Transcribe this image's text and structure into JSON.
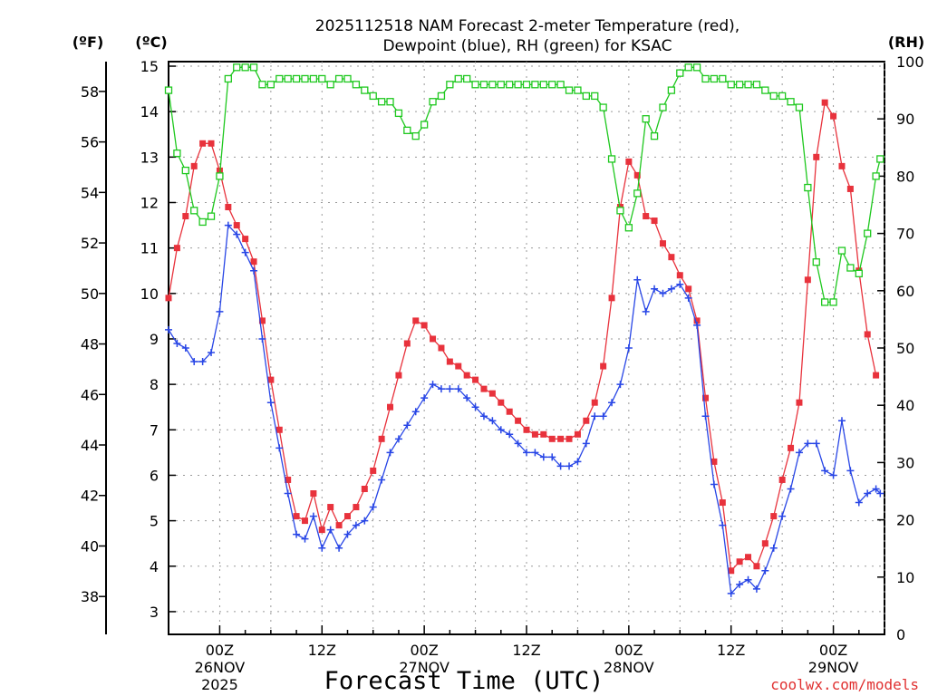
{
  "chart_data": {
    "type": "line",
    "title_line1": "2025112518 NAM Forecast 2-meter Temperature (red),",
    "title_line2": "Dewpoint (blue), RH (green) for KSAC",
    "xlabel": "Forecast Time (UTC)",
    "watermark": "coolwx.com/models",
    "unit_f": "(ºF)",
    "unit_c": "(ºC)",
    "unit_rh": "(RH)",
    "x_start_hour": -6,
    "x_end_hour": 78,
    "y_celsius_range": [
      2.5,
      15.1
    ],
    "y_rh_range": [
      0,
      100
    ],
    "celsius_ticks": [
      "3",
      "4",
      "5",
      "6",
      "7",
      "8",
      "9",
      "10",
      "11",
      "12",
      "13",
      "14",
      "15"
    ],
    "fahrenheit_ticks": [
      "38",
      "40",
      "42",
      "44",
      "46",
      "48",
      "50",
      "52",
      "54",
      "56",
      "58"
    ],
    "rh_ticks": [
      "0",
      "10",
      "20",
      "30",
      "40",
      "50",
      "60",
      "70",
      "80",
      "90",
      "100"
    ],
    "x_ticks": [
      {
        "hour": 0,
        "time": "00Z",
        "day": "26NOV",
        "year": "2025"
      },
      {
        "hour": 12,
        "time": "12Z",
        "day": "",
        "year": ""
      },
      {
        "hour": 24,
        "time": "00Z",
        "day": "27NOV",
        "year": ""
      },
      {
        "hour": 36,
        "time": "12Z",
        "day": "",
        "year": ""
      },
      {
        "hour": 48,
        "time": "00Z",
        "day": "28NOV",
        "year": ""
      },
      {
        "hour": 60,
        "time": "12Z",
        "day": "",
        "year": ""
      },
      {
        "hour": 72,
        "time": "00Z",
        "day": "29NOV",
        "year": ""
      }
    ],
    "series": [
      {
        "name": "Temperature",
        "units": "C",
        "color": "#e8323c",
        "marker": "filled-square",
        "values": [
          [
            -6,
            9.9
          ],
          [
            -5,
            11.0
          ],
          [
            -4,
            11.7
          ],
          [
            -3,
            12.8
          ],
          [
            -2,
            13.3
          ],
          [
            -1,
            13.3
          ],
          [
            0,
            12.7
          ],
          [
            1,
            11.9
          ],
          [
            2,
            11.5
          ],
          [
            3,
            11.2
          ],
          [
            4,
            10.7
          ],
          [
            5,
            9.4
          ],
          [
            6,
            8.1
          ],
          [
            7,
            7.0
          ],
          [
            8,
            5.9
          ],
          [
            9,
            5.1
          ],
          [
            10,
            5.0
          ],
          [
            11,
            5.6
          ],
          [
            12,
            4.8
          ],
          [
            13,
            5.3
          ],
          [
            14,
            4.9
          ],
          [
            15,
            5.1
          ],
          [
            16,
            5.3
          ],
          [
            17,
            5.7
          ],
          [
            18,
            6.1
          ],
          [
            19,
            6.8
          ],
          [
            20,
            7.5
          ],
          [
            21,
            8.2
          ],
          [
            22,
            8.9
          ],
          [
            23,
            9.4
          ],
          [
            24,
            9.3
          ],
          [
            25,
            9.0
          ],
          [
            26,
            8.8
          ],
          [
            27,
            8.5
          ],
          [
            28,
            8.4
          ],
          [
            29,
            8.2
          ],
          [
            30,
            8.1
          ],
          [
            31,
            7.9
          ],
          [
            32,
            7.8
          ],
          [
            33,
            7.6
          ],
          [
            34,
            7.4
          ],
          [
            35,
            7.2
          ],
          [
            36,
            7.0
          ],
          [
            37,
            6.9
          ],
          [
            38,
            6.9
          ],
          [
            39,
            6.8
          ],
          [
            40,
            6.8
          ],
          [
            41,
            6.8
          ],
          [
            42,
            6.9
          ],
          [
            43,
            7.2
          ],
          [
            44,
            7.6
          ],
          [
            45,
            8.4
          ],
          [
            46,
            9.9
          ],
          [
            47,
            11.9
          ],
          [
            48,
            12.9
          ],
          [
            49,
            12.6
          ],
          [
            50,
            11.7
          ],
          [
            51,
            11.6
          ],
          [
            52,
            11.1
          ],
          [
            53,
            10.8
          ],
          [
            54,
            10.4
          ],
          [
            55,
            10.1
          ],
          [
            56,
            9.4
          ],
          [
            57,
            7.7
          ],
          [
            58,
            6.3
          ],
          [
            59,
            5.4
          ],
          [
            60,
            3.9
          ],
          [
            61,
            4.1
          ],
          [
            62,
            4.2
          ],
          [
            63,
            4.0
          ],
          [
            64,
            4.5
          ],
          [
            65,
            5.1
          ],
          [
            66,
            5.9
          ],
          [
            67,
            6.6
          ],
          [
            68,
            7.6
          ],
          [
            69,
            10.3
          ],
          [
            70,
            13.0
          ],
          [
            71,
            14.2
          ],
          [
            72,
            13.9
          ],
          [
            73,
            12.8
          ],
          [
            74,
            12.3
          ],
          [
            75,
            10.5
          ],
          [
            76,
            9.1
          ],
          [
            77,
            8.2
          ]
        ]
      },
      {
        "name": "Dewpoint",
        "units": "C",
        "color": "#2846e6",
        "marker": "plus",
        "values": [
          [
            -6,
            9.2
          ],
          [
            -5,
            8.9
          ],
          [
            -4,
            8.8
          ],
          [
            -3,
            8.5
          ],
          [
            -2,
            8.5
          ],
          [
            -1,
            8.7
          ],
          [
            0,
            9.6
          ],
          [
            1,
            11.5
          ],
          [
            2,
            11.3
          ],
          [
            3,
            10.9
          ],
          [
            4,
            10.5
          ],
          [
            5,
            9.0
          ],
          [
            6,
            7.6
          ],
          [
            7,
            6.6
          ],
          [
            8,
            5.6
          ],
          [
            9,
            4.7
          ],
          [
            10,
            4.6
          ],
          [
            11,
            5.1
          ],
          [
            12,
            4.4
          ],
          [
            13,
            4.8
          ],
          [
            14,
            4.4
          ],
          [
            15,
            4.7
          ],
          [
            16,
            4.9
          ],
          [
            17,
            5.0
          ],
          [
            18,
            5.3
          ],
          [
            19,
            5.9
          ],
          [
            20,
            6.5
          ],
          [
            21,
            6.8
          ],
          [
            22,
            7.1
          ],
          [
            23,
            7.4
          ],
          [
            24,
            7.7
          ],
          [
            25,
            8.0
          ],
          [
            26,
            7.9
          ],
          [
            27,
            7.9
          ],
          [
            28,
            7.9
          ],
          [
            29,
            7.7
          ],
          [
            30,
            7.5
          ],
          [
            31,
            7.3
          ],
          [
            32,
            7.2
          ],
          [
            33,
            7.0
          ],
          [
            34,
            6.9
          ],
          [
            35,
            6.7
          ],
          [
            36,
            6.5
          ],
          [
            37,
            6.5
          ],
          [
            38,
            6.4
          ],
          [
            39,
            6.4
          ],
          [
            40,
            6.2
          ],
          [
            41,
            6.2
          ],
          [
            42,
            6.3
          ],
          [
            43,
            6.7
          ],
          [
            44,
            7.3
          ],
          [
            45,
            7.3
          ],
          [
            46,
            7.6
          ],
          [
            47,
            8.0
          ],
          [
            48,
            8.8
          ],
          [
            49,
            10.3
          ],
          [
            50,
            9.6
          ],
          [
            51,
            10.1
          ],
          [
            52,
            10.0
          ],
          [
            53,
            10.1
          ],
          [
            54,
            10.2
          ],
          [
            55,
            9.9
          ],
          [
            56,
            9.3
          ],
          [
            57,
            7.3
          ],
          [
            58,
            5.8
          ],
          [
            59,
            4.9
          ],
          [
            60,
            3.4
          ],
          [
            61,
            3.6
          ],
          [
            62,
            3.7
          ],
          [
            63,
            3.5
          ],
          [
            64,
            3.9
          ],
          [
            65,
            4.4
          ],
          [
            66,
            5.1
          ],
          [
            67,
            5.7
          ],
          [
            68,
            6.5
          ],
          [
            69,
            6.7
          ],
          [
            70,
            6.7
          ],
          [
            71,
            6.1
          ],
          [
            72,
            6.0
          ],
          [
            73,
            7.2
          ],
          [
            74,
            6.1
          ],
          [
            75,
            5.4
          ],
          [
            76,
            5.6
          ],
          [
            77,
            5.7
          ],
          [
            77.5,
            5.6
          ]
        ]
      },
      {
        "name": "RH",
        "units": "%",
        "color": "#1ec81e",
        "marker": "open-square",
        "values": [
          [
            -6,
            95
          ],
          [
            -5,
            84
          ],
          [
            -4,
            81
          ],
          [
            -3,
            74
          ],
          [
            -2,
            72
          ],
          [
            -1,
            73
          ],
          [
            0,
            80
          ],
          [
            1,
            97
          ],
          [
            2,
            99
          ],
          [
            3,
            99
          ],
          [
            4,
            99
          ],
          [
            5,
            96
          ],
          [
            6,
            96
          ],
          [
            7,
            97
          ],
          [
            8,
            97
          ],
          [
            9,
            97
          ],
          [
            10,
            97
          ],
          [
            11,
            97
          ],
          [
            12,
            97
          ],
          [
            13,
            96
          ],
          [
            14,
            97
          ],
          [
            15,
            97
          ],
          [
            16,
            96
          ],
          [
            17,
            95
          ],
          [
            18,
            94
          ],
          [
            19,
            93
          ],
          [
            20,
            93
          ],
          [
            21,
            91
          ],
          [
            22,
            88
          ],
          [
            23,
            87
          ],
          [
            24,
            89
          ],
          [
            25,
            93
          ],
          [
            26,
            94
          ],
          [
            27,
            96
          ],
          [
            28,
            97
          ],
          [
            29,
            97
          ],
          [
            30,
            96
          ],
          [
            31,
            96
          ],
          [
            32,
            96
          ],
          [
            33,
            96
          ],
          [
            34,
            96
          ],
          [
            35,
            96
          ],
          [
            36,
            96
          ],
          [
            37,
            96
          ],
          [
            38,
            96
          ],
          [
            39,
            96
          ],
          [
            40,
            96
          ],
          [
            41,
            95
          ],
          [
            42,
            95
          ],
          [
            43,
            94
          ],
          [
            44,
            94
          ],
          [
            45,
            92
          ],
          [
            46,
            83
          ],
          [
            47,
            74
          ],
          [
            48,
            71
          ],
          [
            49,
            77
          ],
          [
            50,
            90
          ],
          [
            51,
            87
          ],
          [
            52,
            92
          ],
          [
            53,
            95
          ],
          [
            54,
            98
          ],
          [
            55,
            99
          ],
          [
            56,
            99
          ],
          [
            57,
            97
          ],
          [
            58,
            97
          ],
          [
            59,
            97
          ],
          [
            60,
            96
          ],
          [
            61,
            96
          ],
          [
            62,
            96
          ],
          [
            63,
            96
          ],
          [
            64,
            95
          ],
          [
            65,
            94
          ],
          [
            66,
            94
          ],
          [
            67,
            93
          ],
          [
            68,
            92
          ],
          [
            69,
            78
          ],
          [
            70,
            65
          ],
          [
            71,
            58
          ],
          [
            72,
            58
          ],
          [
            73,
            67
          ],
          [
            74,
            64
          ],
          [
            75,
            63
          ],
          [
            76,
            70
          ],
          [
            77,
            80
          ],
          [
            77.5,
            83
          ]
        ]
      }
    ]
  }
}
